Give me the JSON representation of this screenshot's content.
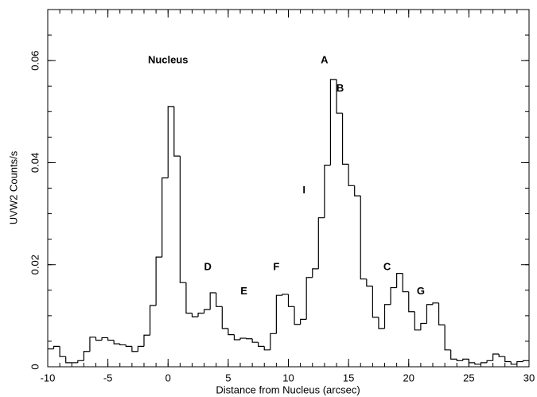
{
  "chart_data": {
    "type": "histogram",
    "xlabel": "Distance from Nucleus (arcsec)",
    "ylabel": "UVW2 Counts/s",
    "bins": [
      -10,
      -9.5,
      -9,
      -8.5,
      -8,
      -7.5,
      -7,
      -6.5,
      -6,
      -5.5,
      -5,
      -4.5,
      -4,
      -3.5,
      -3,
      -2.5,
      -2,
      -1.5,
      -1,
      -0.5,
      0,
      0.5,
      1,
      1.5,
      2,
      2.5,
      3,
      3.5,
      4,
      4.5,
      5,
      5.5,
      6,
      6.5,
      7,
      7.5,
      8,
      8.5,
      9,
      9.5,
      10,
      10.5,
      11,
      11.5,
      12,
      12.5,
      13,
      13.5,
      14,
      14.5,
      15,
      15.5,
      16,
      16.5,
      17,
      17.5,
      18,
      18.5,
      19,
      19.5,
      20,
      20.5,
      21,
      21.5,
      22,
      22.5,
      23,
      23.5,
      24,
      24.5,
      25,
      25.5,
      26,
      26.5,
      27,
      27.5,
      28,
      28.5,
      29,
      29.5,
      30
    ],
    "values": [
      0.0035,
      0.004,
      0.002,
      0.0008,
      0.0008,
      0.0012,
      0.003,
      0.0058,
      0.0052,
      0.0057,
      0.0052,
      0.0045,
      0.0043,
      0.004,
      0.003,
      0.004,
      0.0062,
      0.012,
      0.0215,
      0.037,
      0.051,
      0.0413,
      0.0165,
      0.0105,
      0.0098,
      0.0105,
      0.0112,
      0.0145,
      0.0118,
      0.0075,
      0.0063,
      0.0053,
      0.0056,
      0.0055,
      0.0048,
      0.004,
      0.0033,
      0.0065,
      0.014,
      0.0142,
      0.0118,
      0.0083,
      0.0093,
      0.0175,
      0.0192,
      0.0292,
      0.0395,
      0.0563,
      0.0497,
      0.0397,
      0.0355,
      0.0335,
      0.0172,
      0.0158,
      0.0097,
      0.0075,
      0.0122,
      0.0155,
      0.0183,
      0.0147,
      0.0108,
      0.0072,
      0.0085,
      0.0122,
      0.0125,
      0.0082,
      0.0033,
      0.0015,
      0.0012,
      0.0015,
      0.0008,
      0.0005,
      0.0008,
      0.0012,
      0.0025,
      0.002,
      0.001,
      0.0005,
      0.001,
      0.0012
    ],
    "color": "#000000",
    "xlim": [
      -10,
      30
    ],
    "xticks": [
      -10,
      -5,
      0,
      5,
      10,
      15,
      20,
      25,
      30
    ],
    "ylim": [
      0,
      0.07
    ],
    "yticks": [
      0,
      0.02,
      0.04,
      0.06
    ],
    "annotations": [
      {
        "text": "Nucleus",
        "x": 0,
        "y": 0.06
      },
      {
        "text": "A",
        "x": 13,
        "y": 0.06
      },
      {
        "text": "B",
        "x": 14.3,
        "y": 0.0545
      },
      {
        "text": "I",
        "x": 11.3,
        "y": 0.0345
      },
      {
        "text": "D",
        "x": 3.3,
        "y": 0.0195
      },
      {
        "text": "E",
        "x": 6.3,
        "y": 0.0147
      },
      {
        "text": "F",
        "x": 9,
        "y": 0.0195
      },
      {
        "text": "C",
        "x": 18.2,
        "y": 0.0195
      },
      {
        "text": "G",
        "x": 21,
        "y": 0.0147
      }
    ]
  }
}
